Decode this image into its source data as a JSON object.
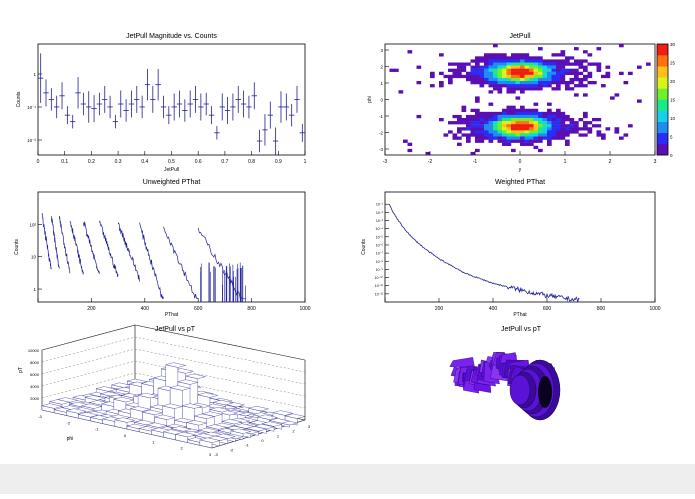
{
  "chart_data": [
    {
      "id": "jetpull_mag",
      "type": "scatter",
      "title": "JetPull Magnitude vs. Counts",
      "xlabel": "JetPull",
      "ylabel": "Counts",
      "xlim": [
        0,
        1
      ],
      "ylim_log10": [
        -2.6,
        0.4
      ],
      "x_ticks": [
        "0",
        "0.1",
        "0.2",
        "0.3",
        "0.4",
        "0.5",
        "0.6",
        "0.7",
        "0.8",
        "0.9",
        "1"
      ],
      "y_ticks": [
        "10⁻²",
        "10⁻¹",
        "1"
      ],
      "points": [
        {
          "x": 0.01,
          "y": 0.3,
          "err": 0.55
        },
        {
          "x": 0.03,
          "y": 0.12,
          "err": 0.3
        },
        {
          "x": 0.05,
          "y": 0.08,
          "err": 0.25
        },
        {
          "x": 0.07,
          "y": 0.05,
          "err": 0.25
        },
        {
          "x": 0.09,
          "y": 0.1,
          "err": 0.3
        },
        {
          "x": 0.11,
          "y": 0.03,
          "err": 0.2
        },
        {
          "x": 0.13,
          "y": 0.02,
          "err": 0.15
        },
        {
          "x": 0.15,
          "y": 0.12,
          "err": 0.35
        },
        {
          "x": 0.17,
          "y": 0.06,
          "err": 0.25
        },
        {
          "x": 0.19,
          "y": 0.05,
          "err": 0.35
        },
        {
          "x": 0.21,
          "y": 0.045,
          "err": 0.3
        },
        {
          "x": 0.23,
          "y": 0.06,
          "err": 0.25
        },
        {
          "x": 0.25,
          "y": 0.08,
          "err": 0.3
        },
        {
          "x": 0.27,
          "y": 0.05,
          "err": 0.25
        },
        {
          "x": 0.29,
          "y": 0.02,
          "err": 0.15
        },
        {
          "x": 0.31,
          "y": 0.06,
          "err": 0.3
        },
        {
          "x": 0.33,
          "y": 0.04,
          "err": 0.25
        },
        {
          "x": 0.35,
          "y": 0.06,
          "err": 0.3
        },
        {
          "x": 0.37,
          "y": 0.08,
          "err": 0.3
        },
        {
          "x": 0.39,
          "y": 0.05,
          "err": 0.25
        },
        {
          "x": 0.41,
          "y": 0.2,
          "err": 0.35
        },
        {
          "x": 0.43,
          "y": 0.08,
          "err": 0.3
        },
        {
          "x": 0.45,
          "y": 0.2,
          "err": 0.35
        },
        {
          "x": 0.47,
          "y": 0.05,
          "err": 0.25
        },
        {
          "x": 0.49,
          "y": 0.03,
          "err": 0.2
        },
        {
          "x": 0.51,
          "y": 0.05,
          "err": 0.3
        },
        {
          "x": 0.53,
          "y": 0.06,
          "err": 0.3
        },
        {
          "x": 0.55,
          "y": 0.04,
          "err": 0.25
        },
        {
          "x": 0.57,
          "y": 0.06,
          "err": 0.3
        },
        {
          "x": 0.59,
          "y": 0.08,
          "err": 0.3
        },
        {
          "x": 0.61,
          "y": 0.05,
          "err": 0.3
        },
        {
          "x": 0.63,
          "y": 0.06,
          "err": 0.25
        },
        {
          "x": 0.65,
          "y": 0.03,
          "err": 0.2
        },
        {
          "x": 0.67,
          "y": 0.01,
          "err": 0.15
        },
        {
          "x": 0.69,
          "y": 0.05,
          "err": 0.3
        },
        {
          "x": 0.71,
          "y": 0.04,
          "err": 0.3
        },
        {
          "x": 0.73,
          "y": 0.05,
          "err": 0.3
        },
        {
          "x": 0.75,
          "y": 0.08,
          "err": 0.3
        },
        {
          "x": 0.77,
          "y": 0.06,
          "err": 0.3
        },
        {
          "x": 0.79,
          "y": 0.05,
          "err": 0.25
        },
        {
          "x": 0.81,
          "y": 0.1,
          "err": 0.3
        },
        {
          "x": 0.83,
          "y": 0.006,
          "err": 0.25
        },
        {
          "x": 0.85,
          "y": 0.012,
          "err": 0.35
        },
        {
          "x": 0.87,
          "y": 0.03,
          "err": 0.3
        },
        {
          "x": 0.89,
          "y": 0.006,
          "err": 0.3
        },
        {
          "x": 0.91,
          "y": 0.05,
          "err": 0.35
        },
        {
          "x": 0.93,
          "y": 0.05,
          "err": 0.3
        },
        {
          "x": 0.95,
          "y": 0.03,
          "err": 0.25
        },
        {
          "x": 0.97,
          "y": 0.08,
          "err": 0.3
        },
        {
          "x": 0.99,
          "y": 0.01,
          "err": 0.2
        }
      ]
    },
    {
      "id": "jetpull_2d",
      "type": "heatmap",
      "title": "JetPull",
      "xlabel": "y",
      "ylabel": "phi",
      "xlim": [
        -3,
        3
      ],
      "ylim": [
        -3.2,
        3.2
      ],
      "x_ticks": [
        "-3",
        "-2",
        "-1",
        "0",
        "1",
        "2",
        "3"
      ],
      "y_ticks": [
        "-3",
        "-2",
        "-1",
        "0",
        "1",
        "2",
        "3"
      ],
      "zlim": [
        0,
        30
      ],
      "z_ticks": [
        "0",
        "5",
        "10",
        "15",
        "20",
        "25",
        "30"
      ],
      "color_scale": [
        "#5a0fb5",
        "#2a2df5",
        "#1e8cf0",
        "#16d2e8",
        "#19e88c",
        "#6ef02a",
        "#d8f51a",
        "#ffc01a",
        "#ff7010",
        "#f01e10"
      ],
      "peaks": [
        {
          "x": 0.0,
          "y": 1.57,
          "value": 30
        },
        {
          "x": 0.0,
          "y": -1.57,
          "value": 30
        }
      ]
    },
    {
      "id": "unweighted_pthat",
      "type": "line",
      "title": "Unweighted PThat",
      "xlabel": "PThat",
      "ylabel": "Counts",
      "xlim": [
        0,
        1000
      ],
      "ylim_log10": [
        -0.4,
        3.0
      ],
      "x_ticks": [
        "200",
        "400",
        "600",
        "800",
        "1000"
      ],
      "y_ticks": [
        "1",
        "10",
        "10²"
      ],
      "segments": [
        {
          "x0": 15,
          "x1": 50,
          "peak": 200
        },
        {
          "x0": 50,
          "x1": 80,
          "peak": 180
        },
        {
          "x0": 80,
          "x1": 120,
          "peak": 160
        },
        {
          "x0": 120,
          "x1": 170,
          "peak": 140
        },
        {
          "x0": 170,
          "x1": 230,
          "peak": 130
        },
        {
          "x0": 230,
          "x1": 300,
          "peak": 120
        },
        {
          "x0": 300,
          "x1": 380,
          "peak": 110
        },
        {
          "x0": 380,
          "x1": 470,
          "peak": 100
        },
        {
          "x0": 470,
          "x1": 600,
          "peak": 90
        },
        {
          "x0": 600,
          "x1": 780,
          "peak": 70
        }
      ]
    },
    {
      "id": "weighted_pthat",
      "type": "line",
      "title": "Weighted PThat",
      "xlabel": "PThat",
      "ylabel": "Counts",
      "xlim": [
        0,
        1000
      ],
      "ylim_log10": [
        -13,
        0.5
      ],
      "x_ticks": [
        "200",
        "400",
        "600",
        "800",
        "1000"
      ],
      "y_ticks": [
        "10⁻¹²",
        "10⁻¹¹",
        "10⁻¹⁰",
        "10⁻⁹",
        "10⁻⁸",
        "10⁻⁷",
        "10⁻⁶",
        "10⁻⁵",
        "10⁻⁴",
        "10⁻³",
        "10⁻²",
        "10⁻¹"
      ],
      "curve": [
        {
          "x": 15,
          "y": 0.1
        },
        {
          "x": 30,
          "y": 0.01
        },
        {
          "x": 60,
          "y": 0.0003
        },
        {
          "x": 100,
          "y": 8e-06
        },
        {
          "x": 150,
          "y": 3e-07
        },
        {
          "x": 200,
          "y": 2e-08
        },
        {
          "x": 300,
          "y": 3e-10
        },
        {
          "x": 400,
          "y": 2e-11
        },
        {
          "x": 500,
          "y": 3e-12
        },
        {
          "x": 600,
          "y": 6e-13
        },
        {
          "x": 700,
          "y": 2e-13
        }
      ]
    },
    {
      "id": "jetpull_vs_pt_lego",
      "type": "heatmap",
      "title": "JetPull vs pT",
      "xlabel": "phi",
      "ylabel": "pT",
      "z_ticks": [
        "2000",
        "4000",
        "6000",
        "8000",
        "10000"
      ],
      "x_ticks": [
        "-3",
        "-2",
        "-1",
        "0",
        "1",
        "2",
        "3"
      ],
      "y_ticks": [
        "-3",
        "-2",
        "-1",
        "0",
        "1",
        "2",
        "3"
      ]
    },
    {
      "id": "jetpull_vs_pt_3d",
      "type": "heatmap",
      "title": "JetPull vs pT",
      "fill_color": "#6a14e6"
    }
  ]
}
